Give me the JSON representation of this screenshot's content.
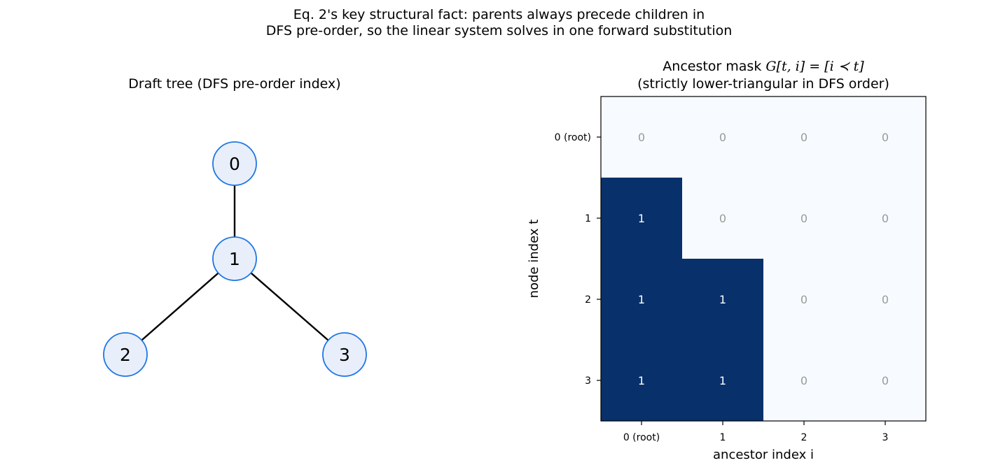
{
  "figure": {
    "suptitle_line1": "Eq. 2's key structural fact: parents always precede children in",
    "suptitle_line2": "DFS pre-order, so the linear system solves in one forward substitution"
  },
  "tree_panel": {
    "title": "Draft tree (DFS pre-order index)",
    "nodes": [
      "0",
      "1",
      "2",
      "3"
    ],
    "edges": [
      [
        0,
        1
      ],
      [
        1,
        2
      ],
      [
        1,
        3
      ]
    ],
    "node_fill": "#e8effb",
    "node_stroke": "#1f77e4"
  },
  "matrix_panel": {
    "title_line1_prefix": "Ancestor mask ",
    "title_line1_math": "G[t, i] = [i ≺ t]",
    "title_line2": "(strictly lower-triangular in DFS order)",
    "xlabel": "ancestor index i",
    "ylabel": "node index t",
    "xticks": [
      "0 (root)",
      "1",
      "2",
      "3"
    ],
    "yticks": [
      "0 (root)",
      "1",
      "2",
      "3"
    ],
    "matrix": [
      [
        0,
        0,
        0,
        0
      ],
      [
        1,
        0,
        0,
        0
      ],
      [
        1,
        1,
        0,
        0
      ],
      [
        1,
        1,
        0,
        0
      ]
    ],
    "color_one": "#08306b",
    "color_zero": "#f7fbff",
    "label_color_one": "#ffffff",
    "label_color_zero": "#999999"
  }
}
